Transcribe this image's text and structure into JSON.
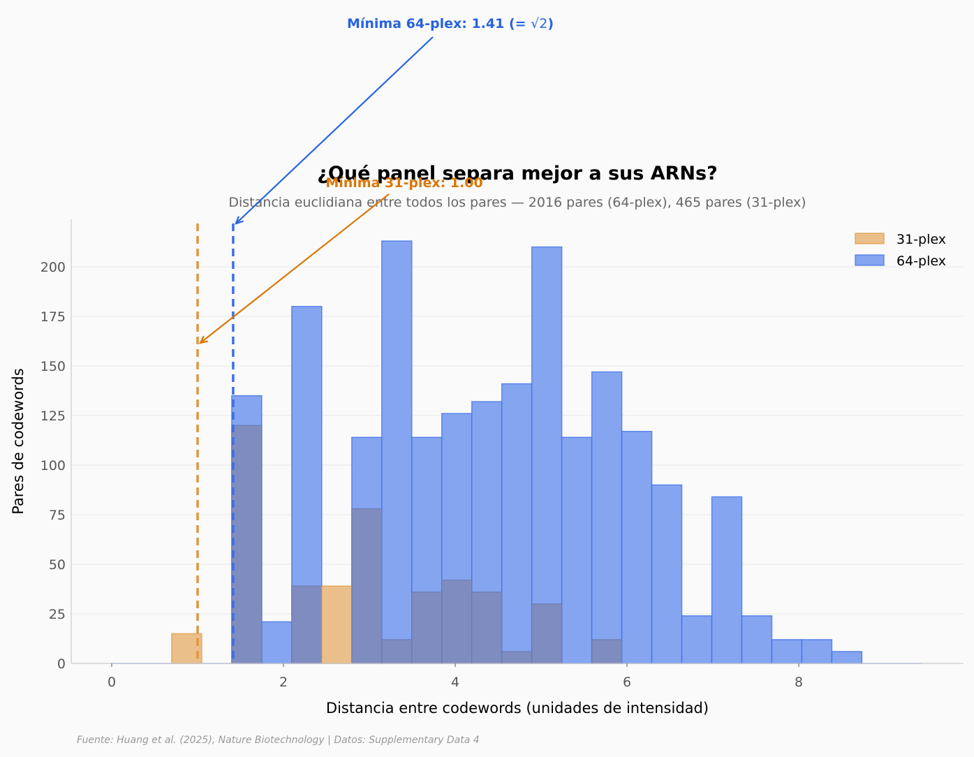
{
  "chart_data": {
    "type": "bar",
    "subtype": "histogram-overlay",
    "title": "¿Qué panel separa mejor a sus ARNs?",
    "subtitle": "Distancia euclidiana entre todos los pares — 2016 pares (64-plex), 465 pares (31-plex)",
    "xlabel": "Distancia entre codewords (unidades de intensidad)",
    "ylabel": "Pares de codewords",
    "xlim": [
      -0.47,
      9.82
    ],
    "ylim": [
      0,
      223
    ],
    "xticks": [
      0,
      2,
      4,
      6,
      8
    ],
    "yticks": [
      0,
      25,
      50,
      75,
      100,
      125,
      150,
      175,
      200
    ],
    "grid": "y",
    "legend_position": "upper right",
    "bin_start": 0,
    "bin_width": 0.3494,
    "series": [
      {
        "name": "64-plex",
        "color": "#3b6fe8",
        "fill": "#85a5f0",
        "values": [
          0,
          0,
          0,
          0,
          135,
          21,
          180,
          0,
          114,
          213,
          114,
          126,
          132,
          141,
          210,
          114,
          147,
          117,
          90,
          24,
          84,
          24,
          12,
          12,
          6,
          0,
          0
        ]
      },
      {
        "name": "31-plex",
        "color": "#e0963c",
        "fill": "#eabf8a",
        "values": [
          0,
          0,
          15,
          0,
          120,
          0,
          39,
          39,
          78,
          12,
          36,
          42,
          36,
          6,
          30,
          0,
          12,
          0,
          0,
          0,
          0,
          0,
          0,
          0,
          0,
          0,
          0
        ]
      }
    ],
    "vlines": [
      {
        "x": 1.0,
        "color": "#e0963c",
        "label": "Mínima 31-plex: 1.00"
      },
      {
        "x": 1.414,
        "color": "#3b6fe8",
        "label": "Mínima 64-plex: 1.41 (= √2)"
      }
    ],
    "annotations": [
      {
        "text": "Mínima 64-plex: 1.41 (= ",
        "sqrt": "2",
        "close": ")",
        "color": "#2563e0",
        "target": [
          1.414,
          222
        ]
      },
      {
        "text": "Mínima 31-plex: 1.00",
        "color": "#d97706",
        "target": [
          1.0,
          161
        ]
      }
    ]
  },
  "footer": "Fuente: Huang et al. (2025), Nature Biotechnology | Datos: Supplementary Data 4"
}
